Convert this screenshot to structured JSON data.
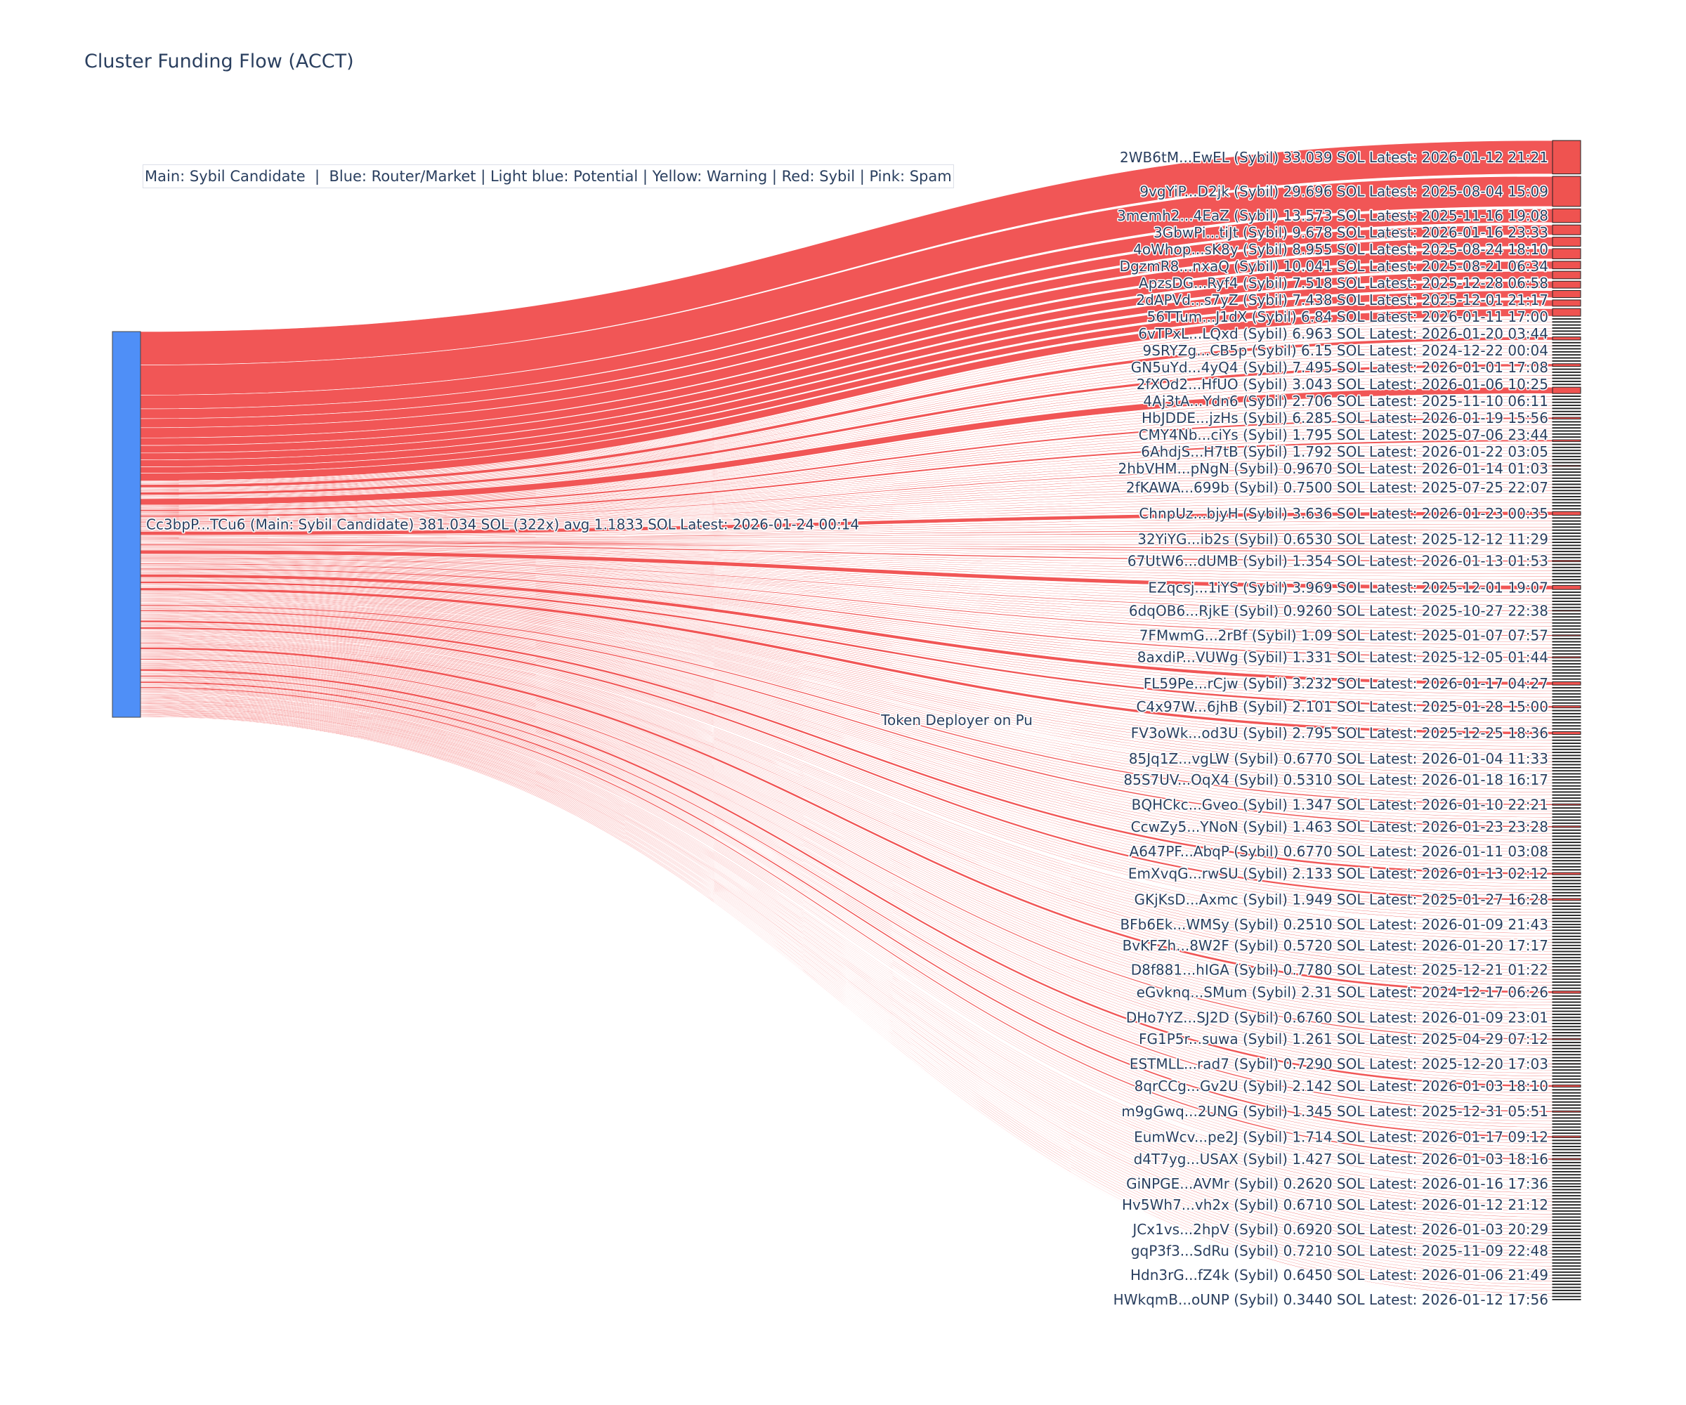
{
  "title": "Cluster Funding Flow (ACCT)",
  "legend_note": "Main: Sybil Candidate  |  Blue: Router/Market | Light blue: Potential | Yellow: Warning | Red: Sybil | Pink: Spam",
  "chart_data": {
    "type": "sankey",
    "title": "Cluster Funding Flow (ACCT)",
    "colors": {
      "source_node": "#4f8ff7",
      "link": "#ef4444",
      "target_node": "#ef5350",
      "text": "#2a3f5f"
    },
    "source": {
      "label": "Cc3bpP...TCu6 (Main: Sybil Candidate) 381.034 SOL (322x) avg 1.1833 SOL Latest: 2026-01-24 00:14",
      "name": "Cc3bpP...TCu6",
      "role": "Main: Sybil Candidate",
      "total_sol": 381.034,
      "transfers": 322,
      "avg_sol": 1.1833,
      "latest": "2026-01-24 00:14"
    },
    "target_count": 322,
    "partial_label": "Token Deployer on Pu",
    "targets": [
      {
        "label": "2WB6tM...EwEL (Sybil) 33.039 SOL Latest: 2026-01-12 21:21",
        "value": 33.039
      },
      {
        "label": "9vgYiP...D2jk (Sybil) 29.696 SOL Latest: 2025-08-04 15:09",
        "value": 29.696
      },
      {
        "label": "3memh2...4EaZ (Sybil) 13.573 SOL Latest: 2025-11-16 19:08",
        "value": 13.573
      },
      {
        "label": "3GbwPi...tiJt (Sybil) 9.678 SOL Latest: 2026-01-16 23:33",
        "value": 9.678
      },
      {
        "label": "4oWhop...sK8y (Sybil) 8.955 SOL Latest: 2025-08-24 18:10",
        "value": 8.955
      },
      {
        "label": "DgzmR8...nxaQ (Sybil) 10.041 SOL Latest: 2025-08-21 06:34",
        "value": 10.041
      },
      {
        "label": "ApzsDG...Ryf4 (Sybil) 7.518 SOL Latest: 2025-12-28 06:58",
        "value": 7.518
      },
      {
        "label": "2dAPVd...s7yZ (Sybil) 7.438 SOL Latest: 2025-12-01 21:17",
        "value": 7.438
      },
      {
        "label": "56TTum...J1dX (Sybil) 6.84 SOL Latest: 2026-01-11 17:00",
        "value": 6.84
      },
      {
        "label": "6vTPxL...LQxd (Sybil) 6.963 SOL Latest: 2026-01-20 03:44",
        "value": 6.963
      },
      {
        "label": "9SRYZg...CB5p (Sybil) 6.15 SOL Latest: 2024-12-22 00:04",
        "value": 6.15
      },
      {
        "label": "GN5uYd...4yQ4 (Sybil) 7.495 SOL Latest: 2026-01-01 17:08",
        "value": 7.495
      },
      {
        "label": "2fXOd2...HfUO (Sybil) 3.043 SOL Latest: 2026-01-06 10:25",
        "value": 3.043
      },
      {
        "label": "4Aj3tA...Ydn6 (Sybil) 2.706 SOL Latest: 2025-11-10 06:11",
        "value": 2.706
      },
      {
        "label": "HbJDDE...jzHs (Sybil) 6.285 SOL Latest: 2026-01-19 15:56",
        "value": 6.285
      },
      {
        "label": "CMY4Nb...ciYs (Sybil) 1.795 SOL Latest: 2025-07-06 23:44",
        "value": 1.795
      },
      {
        "label": "6AhdjS...H7tB (Sybil) 1.792 SOL Latest: 2026-01-22 03:05",
        "value": 1.792
      },
      {
        "label": "2hbVHM...pNgN (Sybil) 0.9670 SOL Latest: 2026-01-14 01:03",
        "value": 0.967
      },
      {
        "label": "2fKAWA...699b (Sybil) 0.7500 SOL Latest: 2025-07-25 22:07",
        "value": 0.75
      },
      {
        "label": "ChnpUz...bjyH (Sybil) 3.636 SOL Latest: 2026-01-23 00:35",
        "value": 3.636
      },
      {
        "label": "32YiYG...ib2s (Sybil) 0.6530 SOL Latest: 2025-12-12 11:29",
        "value": 0.653
      },
      {
        "label": "67UtW6...dUMB (Sybil) 1.354 SOL Latest: 2026-01-13 01:53",
        "value": 1.354
      },
      {
        "label": "EZqcsj...1iYS (Sybil) 3.969 SOL Latest: 2025-12-01 19:07",
        "value": 3.969
      },
      {
        "label": "6dqOB6...RjkE (Sybil) 0.9260 SOL Latest: 2025-10-27 22:38",
        "value": 0.926
      },
      {
        "label": "7FMwmG...2rBf (Sybil) 1.09 SOL Latest: 2025-01-07 07:57",
        "value": 1.09
      },
      {
        "label": "8axdiP...VUWg (Sybil) 1.331 SOL Latest: 2025-12-05 01:44",
        "value": 1.331
      },
      {
        "label": "FL59Pe...rCjw (Sybil) 3.232 SOL Latest: 2026-01-17 04:27",
        "value": 3.232
      },
      {
        "label": "C4x97W...6jhB (Sybil) 2.101 SOL Latest: 2025-01-28 15:00",
        "value": 2.101
      },
      {
        "label": "FV3oWk...od3U (Sybil) 2.795 SOL Latest: 2025-12-25 18:36",
        "value": 2.795
      },
      {
        "label": "85Jq1Z...vgLW (Sybil) 0.6770 SOL Latest: 2026-01-04 11:33",
        "value": 0.677
      },
      {
        "label": "85S7UV...OqX4 (Sybil) 0.5310 SOL Latest: 2026-01-18 16:17",
        "value": 0.531
      },
      {
        "label": "BQHCkc...Gveo (Sybil) 1.347 SOL Latest: 2026-01-10 22:21",
        "value": 1.347
      },
      {
        "label": "CcwZy5...YNoN (Sybil) 1.463 SOL Latest: 2026-01-23 23:28",
        "value": 1.463
      },
      {
        "label": "A647PF...AbqP (Sybil) 0.6770 SOL Latest: 2026-01-11 03:08",
        "value": 0.677
      },
      {
        "label": "EmXvqG...rwSU (Sybil) 2.133 SOL Latest: 2026-01-13 02:12",
        "value": 2.133
      },
      {
        "label": "GKjKsD...Axmc (Sybil) 1.949 SOL Latest: 2025-01-27 16:28",
        "value": 1.949
      },
      {
        "label": "BFb6Ek...WMSy (Sybil) 0.2510 SOL Latest: 2026-01-09 21:43",
        "value": 0.251
      },
      {
        "label": "BvKFZh...8W2F (Sybil) 0.5720 SOL Latest: 2026-01-20 17:17",
        "value": 0.572
      },
      {
        "label": "D8f881...hIGA (Sybil) 0.7780 SOL Latest: 2025-12-21 01:22",
        "value": 0.778
      },
      {
        "label": "eGvknq...SMum (Sybil) 2.31 SOL Latest: 2024-12-17 06:26",
        "value": 2.31
      },
      {
        "label": "DHo7YZ...SJ2D (Sybil) 0.6760 SOL Latest: 2026-01-09 23:01",
        "value": 0.676
      },
      {
        "label": "FG1P5r...suwa (Sybil) 1.261 SOL Latest: 2025-04-29 07:12",
        "value": 1.261
      },
      {
        "label": "ESTMLL...rad7 (Sybil) 0.7290 SOL Latest: 2025-12-20 17:03",
        "value": 0.729
      },
      {
        "label": "8qrCCg...Gv2U (Sybil) 2.142 SOL Latest: 2026-01-03 18:10",
        "value": 2.142
      },
      {
        "label": "m9gGwq...2UNG (Sybil) 1.345 SOL Latest: 2025-12-31 05:51",
        "value": 1.345
      },
      {
        "label": "EumWcv...pe2J (Sybil) 1.714 SOL Latest: 2026-01-17 09:12",
        "value": 1.714
      },
      {
        "label": "d4T7yg...USAX (Sybil) 1.427 SOL Latest: 2026-01-03 18:16",
        "value": 1.427
      },
      {
        "label": "GiNPGE...AVMr (Sybil) 0.2620 SOL Latest: 2026-01-16 17:36",
        "value": 0.262
      },
      {
        "label": "Hv5Wh7...vh2x (Sybil) 0.6710 SOL Latest: 2026-01-12 21:12",
        "value": 0.671
      },
      {
        "label": "JCx1vs...2hpV (Sybil) 0.6920 SOL Latest: 2026-01-03 20:29",
        "value": 0.692
      },
      {
        "label": "gqP3f3...SdRu (Sybil) 0.7210 SOL Latest: 2025-11-09 22:48",
        "value": 0.721
      },
      {
        "label": "Hdn3rG...fZ4k (Sybil) 0.6450 SOL Latest: 2026-01-06 21:49",
        "value": 0.645
      },
      {
        "label": "HWkqmB...oUNP (Sybil) 0.3440 SOL Latest: 2026-01-12 17:56",
        "value": 0.344
      }
    ]
  }
}
